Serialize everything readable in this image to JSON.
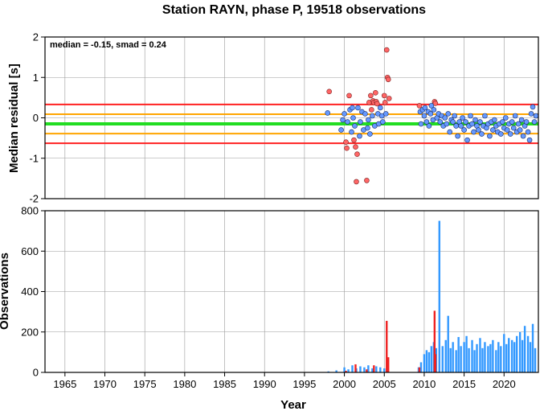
{
  "title": "Station RAYN, phase P, 19518 observations",
  "chart_data": [
    {
      "type": "scatter",
      "title": "Station RAYN, phase P, 19518 observations",
      "xlabel": "",
      "ylabel": "Median residual [s]",
      "xlim": [
        1962.5,
        2024.3
      ],
      "ylim": [
        -2,
        2
      ],
      "y_ticks": [
        "-2",
        "-1",
        "0",
        "1",
        "2"
      ],
      "grid": true,
      "annotation": "median = -0.15, smad = 0.24",
      "median": -0.15,
      "smad": 0.24,
      "reference_lines": [
        {
          "value": 0.33,
          "color": "#ff2020"
        },
        {
          "value": 0.09,
          "color": "#ffa500"
        },
        {
          "value": -0.15,
          "color": "#22dd22"
        },
        {
          "value": -0.39,
          "color": "#ffa500"
        },
        {
          "value": -0.63,
          "color": "#ff2020"
        }
      ],
      "outlier_color": "#ff6666",
      "inlier_color": "#6699ff",
      "outliers": [
        [
          1998.1,
          0.65
        ],
        [
          2000.2,
          -0.6
        ],
        [
          2000.3,
          -0.75
        ],
        [
          2000.6,
          0.55
        ],
        [
          2001.2,
          -0.55
        ],
        [
          2001.4,
          -0.72
        ],
        [
          2001.5,
          -1.58
        ],
        [
          2001.6,
          -0.9
        ],
        [
          2002.8,
          -1.55
        ],
        [
          2003.1,
          0.38
        ],
        [
          2003.3,
          0.55
        ],
        [
          2003.4,
          0.2
        ],
        [
          2003.6,
          0.42
        ],
        [
          2003.7,
          0.38
        ],
        [
          2003.9,
          0.62
        ],
        [
          2004.0,
          0.4
        ],
        [
          2004.1,
          0.35
        ],
        [
          2005.0,
          0.55
        ],
        [
          2005.1,
          0.38
        ],
        [
          2005.3,
          1.68
        ],
        [
          2005.4,
          1.0
        ],
        [
          2005.5,
          0.95
        ],
        [
          2005.6,
          0.48
        ],
        [
          2009.4,
          0.3
        ],
        [
          2011.3,
          0.4
        ],
        [
          2011.4,
          0.36
        ]
      ],
      "inliers": [
        [
          1997.9,
          0.12
        ],
        [
          1999.6,
          -0.3
        ],
        [
          1999.8,
          -0.05
        ],
        [
          2000.0,
          0.1
        ],
        [
          2000.4,
          -0.1
        ],
        [
          2000.7,
          0.2
        ],
        [
          2000.9,
          -0.35
        ],
        [
          2001.0,
          0.25
        ],
        [
          2001.1,
          0.0
        ],
        [
          2001.3,
          -0.2
        ],
        [
          2001.7,
          0.25
        ],
        [
          2001.9,
          -0.45
        ],
        [
          2002.0,
          -0.1
        ],
        [
          2002.2,
          0.15
        ],
        [
          2002.4,
          -0.3
        ],
        [
          2002.6,
          0.1
        ],
        [
          2002.9,
          -0.25
        ],
        [
          2003.0,
          -0.05
        ],
        [
          2003.2,
          -0.4
        ],
        [
          2003.5,
          0.05
        ],
        [
          2003.8,
          -0.2
        ],
        [
          2004.2,
          0.1
        ],
        [
          2004.3,
          -0.15
        ],
        [
          2004.5,
          0.25
        ],
        [
          2004.7,
          0.05
        ],
        [
          2004.8,
          -0.1
        ],
        [
          2005.2,
          0.1
        ],
        [
          2009.5,
          0.15
        ],
        [
          2009.6,
          -0.15
        ],
        [
          2009.8,
          0.2
        ],
        [
          2010.0,
          0.05
        ],
        [
          2010.1,
          0.25
        ],
        [
          2010.3,
          -0.1
        ],
        [
          2010.5,
          0.15
        ],
        [
          2010.6,
          -0.2
        ],
        [
          2010.8,
          0.1
        ],
        [
          2010.9,
          0.3
        ],
        [
          2011.1,
          -0.05
        ],
        [
          2011.2,
          0.2
        ],
        [
          2011.6,
          0.0
        ],
        [
          2011.8,
          0.1
        ],
        [
          2012.0,
          -0.1
        ],
        [
          2012.2,
          0.05
        ],
        [
          2012.4,
          -0.2
        ],
        [
          2012.6,
          0.0
        ],
        [
          2012.8,
          -0.15
        ],
        [
          2013.0,
          0.1
        ],
        [
          2013.2,
          -0.35
        ],
        [
          2013.4,
          -0.05
        ],
        [
          2013.6,
          -0.1
        ],
        [
          2013.8,
          0.05
        ],
        [
          2014.0,
          -0.2
        ],
        [
          2014.2,
          -0.45
        ],
        [
          2014.4,
          -0.1
        ],
        [
          2014.6,
          -0.2
        ],
        [
          2014.8,
          0.0
        ],
        [
          2015.0,
          -0.3
        ],
        [
          2015.2,
          -0.1
        ],
        [
          2015.4,
          -0.55
        ],
        [
          2015.6,
          -0.2
        ],
        [
          2015.8,
          0.05
        ],
        [
          2016.0,
          -0.15
        ],
        [
          2016.2,
          -0.35
        ],
        [
          2016.4,
          -0.05
        ],
        [
          2016.6,
          -0.2
        ],
        [
          2016.8,
          -0.3
        ],
        [
          2017.0,
          -0.1
        ],
        [
          2017.2,
          -0.4
        ],
        [
          2017.4,
          -0.2
        ],
        [
          2017.6,
          0.05
        ],
        [
          2017.8,
          -0.25
        ],
        [
          2018.0,
          -0.15
        ],
        [
          2018.2,
          -0.45
        ],
        [
          2018.4,
          -0.1
        ],
        [
          2018.6,
          -0.3
        ],
        [
          2018.8,
          -0.05
        ],
        [
          2019.0,
          -0.2
        ],
        [
          2019.2,
          -0.35
        ],
        [
          2019.4,
          -0.15
        ],
        [
          2019.6,
          -0.4
        ],
        [
          2019.8,
          -0.1
        ],
        [
          2020.0,
          -0.25
        ],
        [
          2020.2,
          0.0
        ],
        [
          2020.4,
          -0.3
        ],
        [
          2020.6,
          -0.15
        ],
        [
          2020.8,
          -0.4
        ],
        [
          2021.0,
          -0.1
        ],
        [
          2021.2,
          -0.25
        ],
        [
          2021.4,
          0.05
        ],
        [
          2021.6,
          -0.35
        ],
        [
          2021.8,
          -0.15
        ],
        [
          2022.0,
          -0.3
        ],
        [
          2022.2,
          -0.05
        ],
        [
          2022.4,
          -0.45
        ],
        [
          2022.6,
          -0.2
        ],
        [
          2022.8,
          -0.1
        ],
        [
          2023.0,
          -0.35
        ],
        [
          2023.2,
          -0.55
        ],
        [
          2023.4,
          0.1
        ],
        [
          2023.6,
          0.27
        ],
        [
          2023.8,
          -0.1
        ],
        [
          2024.0,
          0.05
        ]
      ]
    },
    {
      "type": "bar",
      "title": "",
      "xlabel": "Year",
      "ylabel": "Observations",
      "xlim": [
        1962.5,
        2024.3
      ],
      "ylim": [
        0,
        800
      ],
      "x_ticks": [
        "1965",
        "1970",
        "1975",
        "1980",
        "1985",
        "1990",
        "1995",
        "2000",
        "2005",
        "2010",
        "2015",
        "2020"
      ],
      "y_ticks": [
        "0",
        "200",
        "400",
        "600",
        "800"
      ],
      "grid": true,
      "series": [
        {
          "color": "#3399ff",
          "x": [
            1998,
            1999,
            2000,
            2000.5,
            2001,
            2001.5,
            2002,
            2002.5,
            2003,
            2003.5,
            2004,
            2004.5,
            2005,
            2009.3,
            2009.6,
            2010,
            2010.3,
            2010.6,
            2010.9,
            2011.2,
            2011.5,
            2011.9,
            2012.3,
            2012.7,
            2013.0,
            2013.3,
            2013.6,
            2014.0,
            2014.3,
            2014.6,
            2015.0,
            2015.3,
            2015.6,
            2016.0,
            2016.3,
            2016.6,
            2017.0,
            2017.3,
            2017.6,
            2018.0,
            2018.3,
            2018.6,
            2019.0,
            2019.3,
            2019.6,
            2020.0,
            2020.3,
            2020.6,
            2021.0,
            2021.3,
            2021.6,
            2022.0,
            2022.3,
            2022.6,
            2023.0,
            2023.3,
            2023.6,
            2023.9
          ],
          "values": [
            5,
            10,
            25,
            15,
            35,
            20,
            30,
            25,
            35,
            20,
            30,
            25,
            20,
            25,
            50,
            90,
            110,
            100,
            130,
            150,
            120,
            750,
            130,
            160,
            280,
            120,
            150,
            110,
            175,
            130,
            150,
            180,
            120,
            160,
            110,
            140,
            170,
            120,
            150,
            130,
            140,
            160,
            110,
            150,
            130,
            190,
            140,
            170,
            160,
            150,
            180,
            200,
            160,
            230,
            180,
            150,
            240,
            120
          ]
        },
        {
          "color": "#ee2222",
          "x": [
            2000.2,
            2001.4,
            2002.8,
            2003.7,
            2005.3,
            2005.5,
            2009.4,
            2011.3,
            2011.4
          ],
          "values": [
            8,
            40,
            15,
            35,
            255,
            75,
            25,
            305,
            90
          ]
        }
      ]
    }
  ]
}
